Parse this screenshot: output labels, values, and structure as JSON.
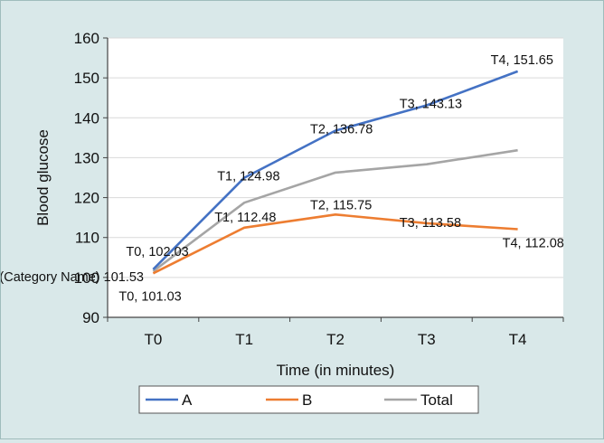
{
  "chart_data": {
    "type": "line",
    "categories": [
      "T0",
      "T1",
      "T2",
      "T3",
      "T4"
    ],
    "xlabel": "Time (in minutes)",
    "ylabel": "Blood glucose",
    "ylim": [
      90,
      160
    ],
    "yticks": [
      90,
      100,
      110,
      120,
      130,
      140,
      150,
      160
    ],
    "grid": true,
    "legend_position": "bottom",
    "series": [
      {
        "name": "A",
        "color": "#4472c4",
        "values": [
          102.03,
          124.98,
          136.78,
          143.13,
          151.65
        ],
        "labels": [
          "T0, 102.03",
          "T1, 124.98",
          "T2, 136.78",
          "T3, 143.13",
          "T4, 151.65"
        ]
      },
      {
        "name": "B",
        "color": "#ed7d31",
        "values": [
          101.03,
          112.48,
          115.75,
          113.58,
          112.08
        ],
        "labels": [
          "T0, 101.03",
          "T1, 112.48",
          "T2, 115.75",
          "T3, 113.58",
          "T4, 112.08"
        ]
      },
      {
        "name": "Total",
        "color": "#a5a5a5",
        "values": [
          101.53,
          118.73,
          126.27,
          128.36,
          131.87
        ],
        "labels": [
          "(Category Name) 101.53"
        ]
      }
    ]
  }
}
